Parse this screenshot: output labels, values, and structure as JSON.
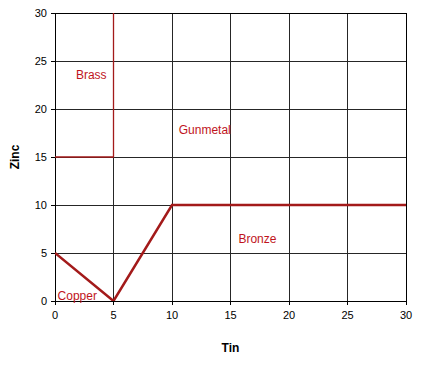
{
  "chart_data": {
    "type": "line",
    "x_label": "Tin",
    "y_label": "Zinc",
    "xlim": [
      0,
      30
    ],
    "ylim": [
      0,
      30
    ],
    "xticks": [
      0,
      5,
      10,
      15,
      20,
      25,
      30
    ],
    "yticks": [
      0,
      5,
      10,
      15,
      20,
      25,
      30
    ],
    "grid": true,
    "series": [
      {
        "x": [
          0,
          5,
          10,
          30
        ],
        "values": [
          5,
          0,
          10,
          10
        ],
        "color": "#a31a1a",
        "line_style": "thick"
      },
      {
        "x": [
          0,
          5,
          5
        ],
        "values": [
          15,
          15,
          30
        ],
        "color": "#a31a1a",
        "line_style": "thin"
      }
    ],
    "annotations": [
      {
        "text": "Brass",
        "x": 3.1,
        "y": 23.5,
        "color": "#c0141c"
      },
      {
        "text": "Gunmetal",
        "x": 12.8,
        "y": 17.8,
        "color": "#c0141c"
      },
      {
        "text": "Bronze",
        "x": 17.3,
        "y": 6.5,
        "color": "#c0141c"
      },
      {
        "text": "Copper",
        "x": 1.9,
        "y": 0.5,
        "color": "#c0141c"
      }
    ]
  }
}
